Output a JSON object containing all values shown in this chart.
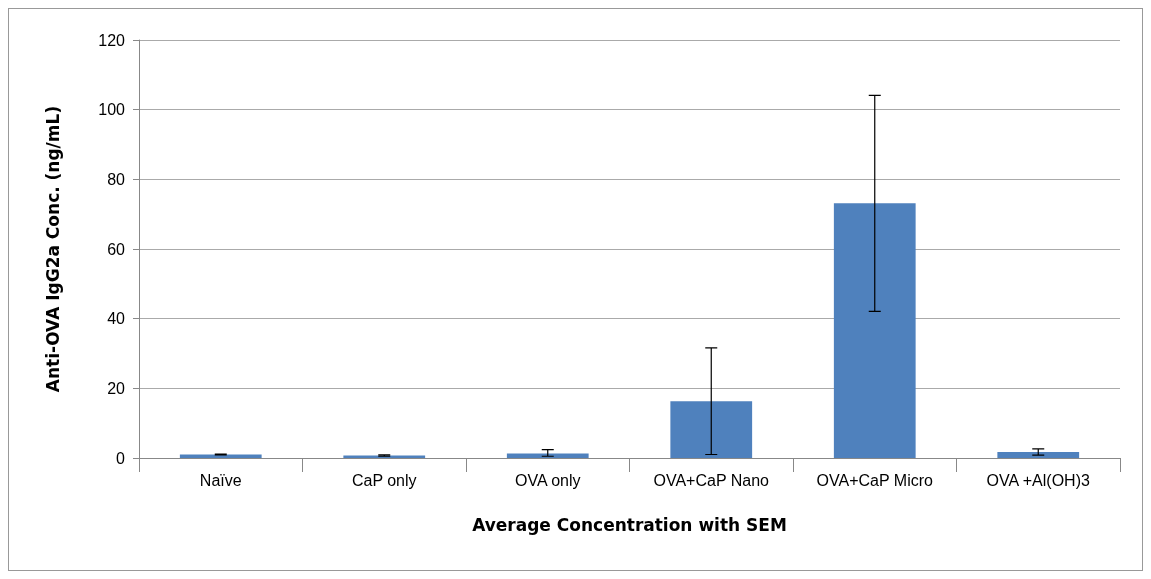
{
  "chart_data": {
    "type": "bar",
    "xlabel": "Average Concentration with SEM",
    "ylabel": "Anti-OVA IgG2a Conc. (ng/mL)",
    "categories": [
      "Naïve",
      "CaP only",
      "OVA only",
      "OVA+CaP Nano",
      "OVA+CaP Micro",
      "OVA +Al(OH)3"
    ],
    "values": [
      1.0,
      0.7,
      1.3,
      16.3,
      73.1,
      1.7
    ],
    "errors": [
      0.1,
      0.2,
      [
        0.5,
        2.4
      ],
      15.3,
      31,
      0.9
    ],
    "color": "#4f81bd",
    "ylim": [
      0,
      120
    ],
    "yticks": [
      0,
      20,
      40,
      60,
      80,
      100,
      120
    ],
    "grid": "y"
  }
}
